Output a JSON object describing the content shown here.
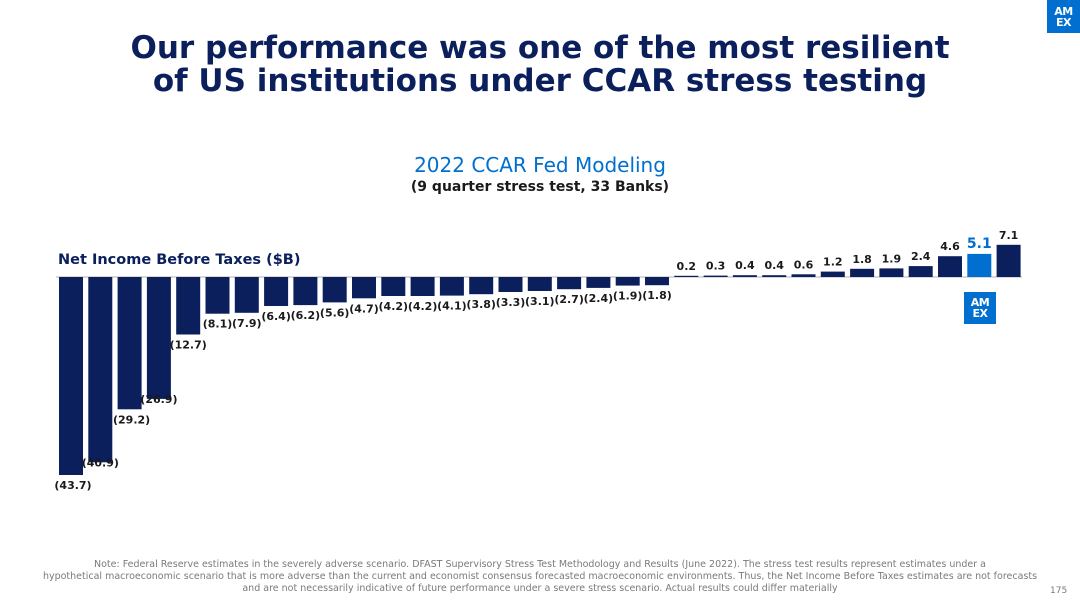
{
  "header": {
    "title_line1": "Our performance was one of the most resilient",
    "title_line2": "of US institutions under CCAR stress testing",
    "logo_text_line1": "AM",
    "logo_text_line2": "EX"
  },
  "chart_data": {
    "type": "bar",
    "title": "2022 CCAR Fed Modeling",
    "subtitle": "(9 quarter stress test, 33 Banks)",
    "ylabel": "Net Income Before Taxes ($B)",
    "xlabel": "",
    "values": [
      -43.7,
      -40.9,
      -29.2,
      -26.9,
      -12.7,
      -8.1,
      -7.9,
      -6.4,
      -6.2,
      -5.6,
      -4.7,
      -4.2,
      -4.2,
      -4.1,
      -3.8,
      -3.3,
      -3.1,
      -2.7,
      -2.4,
      -1.9,
      -1.8,
      0.2,
      0.3,
      0.4,
      0.4,
      0.6,
      1.2,
      1.8,
      1.9,
      2.4,
      4.6,
      5.1,
      7.1
    ],
    "labels": [
      "(43.7)",
      "(40.9)",
      "(29.2)",
      "(26.9)",
      "(12.7)",
      "(8.1)",
      "(7.9)",
      "(6.4)",
      "(6.2)",
      "(5.6)",
      "(4.7)",
      "(4.2)",
      "(4.2)",
      "(4.1)",
      "(3.8)",
      "(3.3)",
      "(3.1)",
      "(2.7)",
      "(2.4)",
      "(1.9)",
      "(1.8)",
      "0.2",
      "0.3",
      "0.4",
      "0.4",
      "0.6",
      "1.2",
      "1.8",
      "1.9",
      "2.4",
      "4.6",
      "5.1",
      "7.1"
    ],
    "highlight_index": 31,
    "colors": {
      "bar": "#0a1f5c",
      "highlight": "#006fcf",
      "axis": "#b0b0b0"
    },
    "grid": false,
    "ylim": [
      -43.7,
      7.1
    ]
  },
  "footer": {
    "note_line1": "Note: Federal Reserve estimates in the severely adverse scenario. DFAST Supervisory Stress Test Methodology and Results (June 2022). The stress test results represent estimates under a",
    "note_line2": "hypothetical macroeconomic scenario that is more adverse than the current and economist consensus forecasted macroeconomic environments. Thus, the Net Income Before Taxes estimates are not forecasts",
    "note_line3": "and are not necessarily indicative of future performance under a severe stress scenario. Actual results could differ materially",
    "page_number": "175"
  }
}
